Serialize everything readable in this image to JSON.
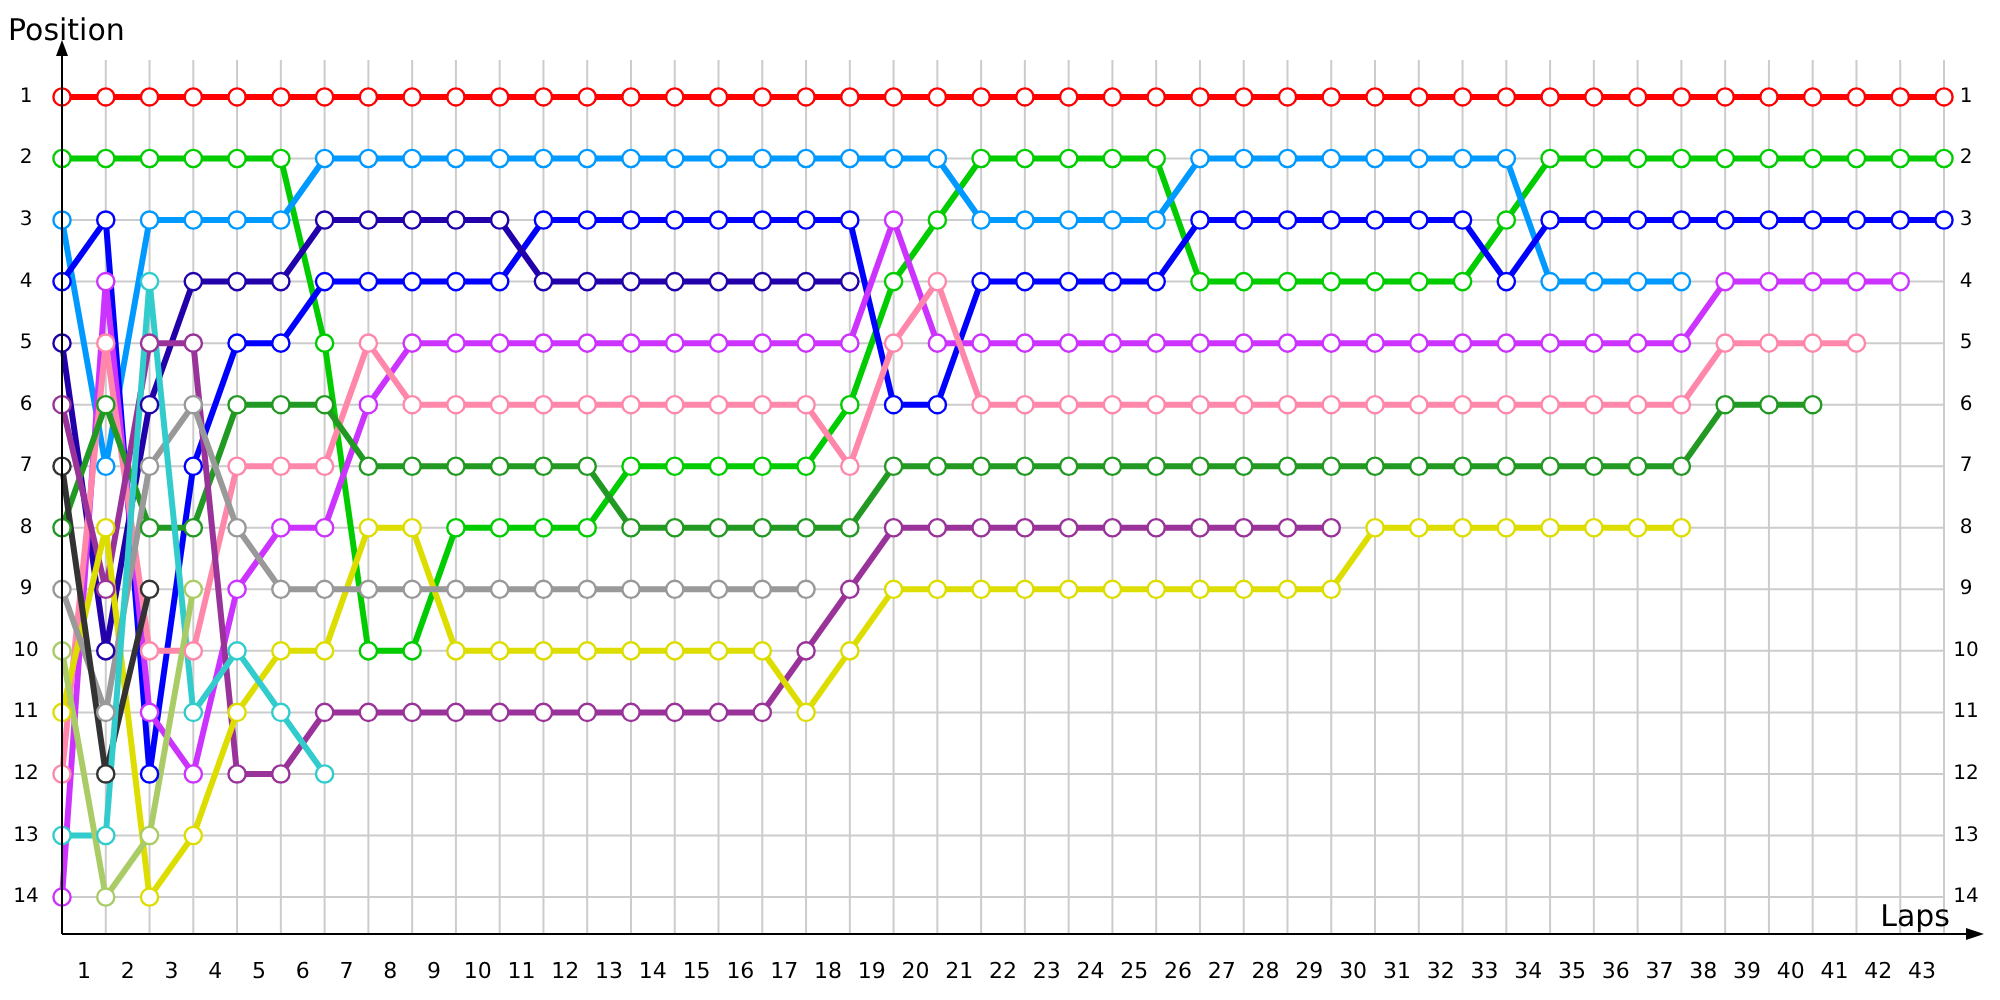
{
  "chart_data": {
    "type": "line",
    "xlabel": "Laps",
    "ylabel": "Position",
    "grid": true,
    "marker": "circle",
    "line_style": "solid",
    "x": [
      0,
      1,
      2,
      3,
      4,
      5,
      6,
      7,
      8,
      9,
      10,
      11,
      12,
      13,
      14,
      15,
      16,
      17,
      18,
      19,
      20,
      21,
      22,
      23,
      24,
      25,
      26,
      27,
      28,
      29,
      30,
      31,
      32,
      33,
      34,
      35,
      36,
      37,
      38,
      39,
      40,
      41,
      42,
      43
    ],
    "xlim": [
      0,
      43
    ],
    "ylim": [
      14.6,
      0.4
    ],
    "y2lim": [
      14.6,
      0.4
    ],
    "xticks": [
      {
        "value": 0,
        "label": null
      },
      {
        "value": 0.5,
        "label": "1"
      },
      {
        "value": 1,
        "label": null
      },
      {
        "value": 1.5,
        "label": "2"
      },
      {
        "value": 2,
        "label": null
      },
      {
        "value": 2.5,
        "label": "3"
      },
      {
        "value": 3,
        "label": null
      },
      {
        "value": 3.5,
        "label": "4"
      },
      {
        "value": 4,
        "label": null
      },
      {
        "value": 4.5,
        "label": "5"
      },
      {
        "value": 5,
        "label": null
      },
      {
        "value": 5.5,
        "label": "6"
      },
      {
        "value": 6,
        "label": null
      },
      {
        "value": 6.5,
        "label": "7"
      },
      {
        "value": 7,
        "label": null
      },
      {
        "value": 7.5,
        "label": "8"
      },
      {
        "value": 8,
        "label": null
      },
      {
        "value": 8.5,
        "label": "9"
      },
      {
        "value": 9,
        "label": null
      },
      {
        "value": 9.5,
        "label": "10"
      },
      {
        "value": 10,
        "label": null
      },
      {
        "value": 10.5,
        "label": "11"
      },
      {
        "value": 11,
        "label": null
      },
      {
        "value": 11.5,
        "label": "12"
      },
      {
        "value": 12,
        "label": null
      },
      {
        "value": 12.5,
        "label": "13"
      },
      {
        "value": 13,
        "label": null
      },
      {
        "value": 13.5,
        "label": "14"
      },
      {
        "value": 14,
        "label": null
      },
      {
        "value": 14.5,
        "label": "15"
      },
      {
        "value": 15,
        "label": null
      },
      {
        "value": 15.5,
        "label": "16"
      },
      {
        "value": 16,
        "label": null
      },
      {
        "value": 16.5,
        "label": "17"
      },
      {
        "value": 17,
        "label": null
      },
      {
        "value": 17.5,
        "label": "18"
      },
      {
        "value": 18,
        "label": null
      },
      {
        "value": 18.5,
        "label": "19"
      },
      {
        "value": 19,
        "label": null
      },
      {
        "value": 19.5,
        "label": "20"
      },
      {
        "value": 20,
        "label": null
      },
      {
        "value": 20.5,
        "label": "21"
      },
      {
        "value": 21,
        "label": null
      },
      {
        "value": 21.5,
        "label": "22"
      },
      {
        "value": 22,
        "label": null
      },
      {
        "value": 22.5,
        "label": "23"
      },
      {
        "value": 23,
        "label": null
      },
      {
        "value": 23.5,
        "label": "24"
      },
      {
        "value": 24,
        "label": null
      },
      {
        "value": 24.5,
        "label": "25"
      },
      {
        "value": 25,
        "label": null
      },
      {
        "value": 25.5,
        "label": "26"
      },
      {
        "value": 26,
        "label": null
      },
      {
        "value": 26.5,
        "label": "27"
      },
      {
        "value": 27,
        "label": null
      },
      {
        "value": 27.5,
        "label": "28"
      },
      {
        "value": 28,
        "label": null
      },
      {
        "value": 28.5,
        "label": "29"
      },
      {
        "value": 29,
        "label": null
      },
      {
        "value": 29.5,
        "label": "30"
      },
      {
        "value": 30,
        "label": null
      },
      {
        "value": 30.5,
        "label": "31"
      },
      {
        "value": 31,
        "label": null
      },
      {
        "value": 31.5,
        "label": "32"
      },
      {
        "value": 32,
        "label": null
      },
      {
        "value": 32.5,
        "label": "33"
      },
      {
        "value": 33,
        "label": null
      },
      {
        "value": 33.5,
        "label": "34"
      },
      {
        "value": 34,
        "label": null
      },
      {
        "value": 34.5,
        "label": "35"
      },
      {
        "value": 35,
        "label": null
      },
      {
        "value": 35.5,
        "label": "36"
      },
      {
        "value": 36,
        "label": null
      },
      {
        "value": 36.5,
        "label": "37"
      },
      {
        "value": 37,
        "label": null
      },
      {
        "value": 37.5,
        "label": "38"
      },
      {
        "value": 38,
        "label": null
      },
      {
        "value": 38.5,
        "label": "39"
      },
      {
        "value": 39,
        "label": null
      },
      {
        "value": 39.5,
        "label": "40"
      },
      {
        "value": 40,
        "label": null
      },
      {
        "value": 40.5,
        "label": "41"
      },
      {
        "value": 41,
        "label": null
      },
      {
        "value": 41.5,
        "label": "42"
      },
      {
        "value": 42,
        "label": null
      },
      {
        "value": 42.5,
        "label": "43"
      },
      {
        "value": 43,
        "label": null
      }
    ],
    "yticks": [
      1,
      2,
      3,
      4,
      5,
      6,
      7,
      8,
      9,
      10,
      11,
      12,
      13,
      14
    ],
    "y2ticks": [
      1,
      2,
      3,
      4,
      5,
      6,
      7,
      8,
      9,
      10,
      11,
      12,
      13,
      14
    ],
    "series": [
      {
        "color": "#ff0000",
        "values": [
          1,
          1,
          1,
          1,
          1,
          1,
          1,
          1,
          1,
          1,
          1,
          1,
          1,
          1,
          1,
          1,
          1,
          1,
          1,
          1,
          1,
          1,
          1,
          1,
          1,
          1,
          1,
          1,
          1,
          1,
          1,
          1,
          1,
          1,
          1,
          1,
          1,
          1,
          1,
          1,
          1,
          1,
          1,
          1
        ]
      },
      {
        "color": "#00cc00",
        "values": [
          2,
          2,
          2,
          2,
          2,
          2,
          5,
          10,
          10,
          8,
          8,
          8,
          8,
          7,
          7,
          7,
          7,
          7,
          6,
          4,
          3,
          2,
          2,
          2,
          2,
          2,
          4,
          4,
          4,
          4,
          4,
          4,
          4,
          3,
          2,
          2,
          2,
          2,
          2,
          2,
          2,
          2,
          2,
          2
        ]
      },
      {
        "color": "#0099ff",
        "values": [
          3,
          7,
          3,
          3,
          3,
          3,
          2,
          2,
          2,
          2,
          2,
          2,
          2,
          2,
          2,
          2,
          2,
          2,
          2,
          2,
          2,
          3,
          3,
          3,
          3,
          3,
          2,
          2,
          2,
          2,
          2,
          2,
          2,
          2,
          4,
          4,
          4,
          4,
          null,
          null,
          null,
          null,
          null,
          null
        ]
      },
      {
        "color": "#0000ff",
        "values": [
          4,
          3,
          12,
          7,
          5,
          5,
          4,
          4,
          4,
          4,
          4,
          3,
          3,
          3,
          3,
          3,
          3,
          3,
          3,
          6,
          6,
          4,
          4,
          4,
          4,
          4,
          3,
          3,
          3,
          3,
          3,
          3,
          3,
          4,
          3,
          3,
          3,
          3,
          3,
          3,
          3,
          3,
          3,
          3
        ]
      },
      {
        "color": "#2200aa",
        "values": [
          5,
          10,
          6,
          4,
          4,
          4,
          3,
          3,
          3,
          3,
          3,
          4,
          4,
          4,
          4,
          4,
          4,
          4,
          4,
          null,
          null,
          null,
          null,
          null,
          null,
          null,
          null,
          null,
          null,
          null,
          null,
          null,
          null,
          null,
          null,
          null,
          null,
          null,
          null,
          null,
          null,
          null,
          null,
          null
        ]
      },
      {
        "color": "#cc33ff",
        "values": [
          14,
          4,
          11,
          12,
          9,
          8,
          8,
          6,
          5,
          5,
          5,
          5,
          5,
          5,
          5,
          5,
          5,
          5,
          5,
          3,
          5,
          5,
          5,
          5,
          5,
          5,
          5,
          5,
          5,
          5,
          5,
          5,
          5,
          5,
          5,
          5,
          5,
          5,
          4,
          4,
          4,
          4,
          4,
          null
        ]
      },
      {
        "color": "#ff88aa",
        "values": [
          12,
          5,
          10,
          10,
          7,
          7,
          7,
          5,
          6,
          6,
          6,
          6,
          6,
          6,
          6,
          6,
          6,
          6,
          7,
          5,
          4,
          6,
          6,
          6,
          6,
          6,
          6,
          6,
          6,
          6,
          6,
          6,
          6,
          6,
          6,
          6,
          6,
          6,
          5,
          5,
          5,
          5,
          null,
          null
        ]
      },
      {
        "color": "#229922",
        "values": [
          8,
          6,
          8,
          8,
          6,
          6,
          6,
          7,
          7,
          7,
          7,
          7,
          7,
          8,
          8,
          8,
          8,
          8,
          8,
          7,
          7,
          7,
          7,
          7,
          7,
          7,
          7,
          7,
          7,
          7,
          7,
          7,
          7,
          7,
          7,
          7,
          7,
          7,
          6,
          6,
          6,
          null,
          null,
          null
        ]
      },
      {
        "color": "#993399",
        "values": [
          6,
          9,
          5,
          5,
          12,
          12,
          11,
          11,
          11,
          11,
          11,
          11,
          11,
          11,
          11,
          11,
          11,
          10,
          9,
          8,
          8,
          8,
          8,
          8,
          8,
          8,
          8,
          8,
          8,
          8,
          null,
          null,
          null,
          null,
          null,
          null,
          null,
          null,
          null,
          null,
          null,
          null,
          null,
          null
        ]
      },
      {
        "color": "#dddd00",
        "values": [
          11,
          8,
          14,
          13,
          11,
          10,
          10,
          8,
          8,
          10,
          10,
          10,
          10,
          10,
          10,
          10,
          10,
          11,
          10,
          9,
          9,
          9,
          9,
          9,
          9,
          9,
          9,
          9,
          9,
          9,
          8,
          8,
          8,
          8,
          8,
          8,
          8,
          8,
          null,
          null,
          null,
          null,
          null,
          null
        ]
      },
      {
        "color": "#999999",
        "values": [
          9,
          11,
          7,
          6,
          8,
          9,
          9,
          9,
          9,
          9,
          9,
          9,
          9,
          9,
          9,
          9,
          9,
          9,
          null,
          null,
          null,
          null,
          null,
          null,
          null,
          null,
          null,
          null,
          null,
          null,
          null,
          null,
          null,
          null,
          null,
          null,
          null,
          null,
          null,
          null,
          null,
          null,
          null,
          null
        ]
      },
      {
        "color": "#333333",
        "values": [
          7,
          12,
          9,
          null,
          null,
          null,
          null,
          null,
          null,
          null,
          null,
          null,
          null,
          null,
          null,
          null,
          null,
          null,
          null,
          null,
          null,
          null,
          null,
          null,
          null,
          null,
          null,
          null,
          null,
          null,
          null,
          null,
          null,
          null,
          null,
          null,
          null,
          null,
          null,
          null,
          null,
          null,
          null,
          null
        ]
      },
      {
        "color": "#33cccc",
        "values": [
          13,
          13,
          4,
          11,
          10,
          11,
          12,
          null,
          null,
          null,
          null,
          null,
          null,
          null,
          null,
          null,
          null,
          null,
          null,
          null,
          null,
          null,
          null,
          null,
          null,
          null,
          null,
          null,
          null,
          null,
          null,
          null,
          null,
          null,
          null,
          null,
          null,
          null,
          null,
          null,
          null,
          null,
          null,
          null
        ]
      },
      {
        "color": "#aacc66",
        "values": [
          10,
          14,
          13,
          9,
          null,
          null,
          null,
          null,
          null,
          null,
          null,
          null,
          null,
          null,
          null,
          null,
          null,
          null,
          null,
          null,
          null,
          null,
          null,
          null,
          null,
          null,
          null,
          null,
          null,
          null,
          null,
          null,
          null,
          null,
          null,
          null,
          null,
          null,
          null,
          null,
          null,
          null,
          null,
          null
        ]
      }
    ]
  }
}
